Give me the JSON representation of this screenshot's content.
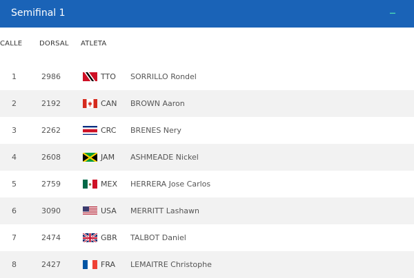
{
  "header": {
    "title": "Semifinal 1",
    "collapse_symbol": "–"
  },
  "columns": {
    "lane": "CALLE",
    "bib": "DORSAL",
    "athlete": "ATLETA"
  },
  "rows": [
    {
      "lane": "1",
      "bib": "2986",
      "flag_icon": "trinidad-tobago-flag-icon",
      "country": "TTO",
      "name": "SORRILLO Rondel"
    },
    {
      "lane": "2",
      "bib": "2192",
      "flag_icon": "canada-flag-icon",
      "country": "CAN",
      "name": "BROWN Aaron"
    },
    {
      "lane": "3",
      "bib": "2262",
      "flag_icon": "costa-rica-flag-icon",
      "country": "CRC",
      "name": "BRENES Nery"
    },
    {
      "lane": "4",
      "bib": "2608",
      "flag_icon": "jamaica-flag-icon",
      "country": "JAM",
      "name": "ASHMEADE Nickel"
    },
    {
      "lane": "5",
      "bib": "2759",
      "flag_icon": "mexico-flag-icon",
      "country": "MEX",
      "name": "HERRERA Jose Carlos"
    },
    {
      "lane": "6",
      "bib": "3090",
      "flag_icon": "usa-flag-icon",
      "country": "USA",
      "name": "MERRITT Lashawn"
    },
    {
      "lane": "7",
      "bib": "2474",
      "flag_icon": "uk-flag-icon",
      "country": "GBR",
      "name": "TALBOT Daniel"
    },
    {
      "lane": "8",
      "bib": "2427",
      "flag_icon": "france-flag-icon",
      "country": "FRA",
      "name": "LEMAITRE Christophe"
    }
  ],
  "colors": {
    "header_bg": "#1a63b7",
    "accent": "#49d3b6",
    "row_alt": "#f2f2f2"
  }
}
